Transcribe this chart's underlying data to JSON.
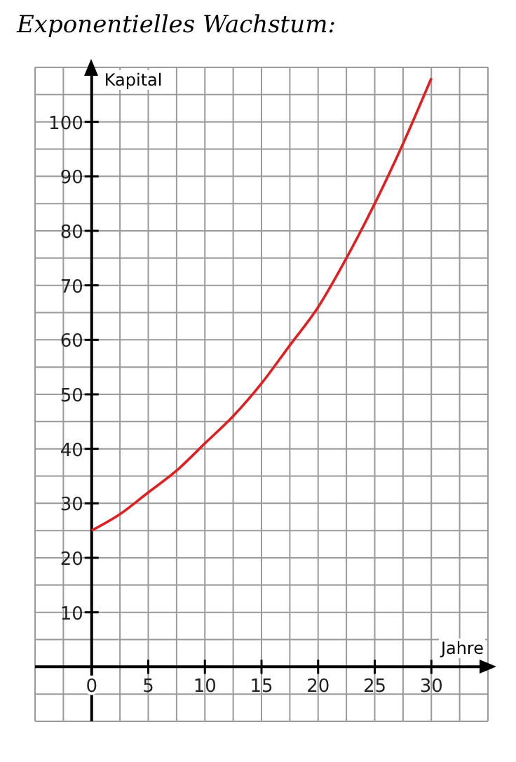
{
  "chart_data": {
    "type": "line",
    "title": "Exponentielles Wachstum:",
    "xlabel": "Jahre",
    "ylabel": "Kapital",
    "x": [
      0,
      2.5,
      5,
      7.5,
      10,
      12.5,
      15,
      17.5,
      20,
      22.5,
      25,
      27.5,
      30
    ],
    "series": [
      {
        "color": "#e02020",
        "values": [
          25,
          28,
          32,
          36,
          41,
          46,
          52,
          59,
          66,
          75,
          85,
          96,
          108
        ]
      }
    ],
    "xlim": [
      -5,
      35
    ],
    "ylim": [
      -10,
      110
    ],
    "xticks": [
      {
        "value": -5,
        "label": null
      },
      {
        "value": -2.5,
        "label": null
      },
      0,
      {
        "value": 2.5,
        "label": null
      },
      5,
      {
        "value": 7.5,
        "label": null
      },
      10,
      {
        "value": 12.5,
        "label": null
      },
      15,
      {
        "value": 17.5,
        "label": null
      },
      20,
      {
        "value": 22.5,
        "label": null
      },
      25,
      {
        "value": 27.5,
        "label": null
      },
      30,
      {
        "value": 32.5,
        "label": null
      },
      {
        "value": 35,
        "label": null
      }
    ],
    "yticks": [
      {
        "value": -10,
        "label": null
      },
      {
        "value": -5,
        "label": null
      },
      {
        "value": 0,
        "label": null
      },
      {
        "value": 5,
        "label": null
      },
      10,
      {
        "value": 15,
        "label": null
      },
      20,
      {
        "value": 25,
        "label": null
      },
      30,
      {
        "value": 35,
        "label": null
      },
      40,
      {
        "value": 45,
        "label": null
      },
      50,
      {
        "value": 55,
        "label": null
      },
      60,
      {
        "value": 65,
        "label": null
      },
      70,
      {
        "value": 75,
        "label": null
      },
      80,
      {
        "value": 85,
        "label": null
      },
      90,
      {
        "value": 95,
        "label": null
      },
      100,
      {
        "value": 105,
        "label": null
      },
      {
        "value": 110,
        "label": null
      }
    ],
    "grid": true,
    "legend": false,
    "marker": "none",
    "line_style": "solid"
  }
}
